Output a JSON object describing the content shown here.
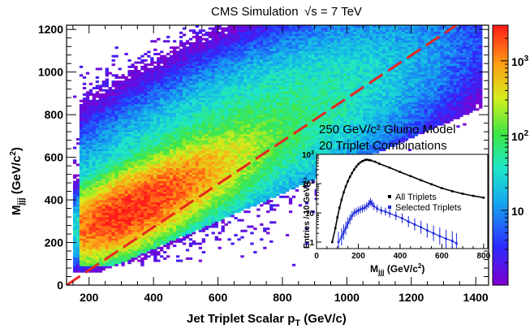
{
  "chart_data": {
    "type": "heatmap",
    "title": "CMS Simulation",
    "energy_label": "√s = 7 TeV",
    "xlabel": {
      "main": "Jet Triplet Scalar p",
      "sub": "T",
      "unit": " (GeV/c)"
    },
    "ylabel": {
      "main": "M",
      "sub": "jjj",
      "unit": " (GeV/c",
      "sup": "2",
      "close": ")"
    },
    "xlim": [
      130,
      1440
    ],
    "ylim": [
      0,
      1220
    ],
    "xticks": [
      200,
      400,
      600,
      800,
      1000,
      1200,
      1400
    ],
    "yticks": [
      0,
      200,
      400,
      600,
      800,
      1000,
      1200
    ],
    "colorbar": {
      "log": true,
      "range": [
        1,
        3000
      ],
      "ticks": [
        {
          "value": 10,
          "label": "10",
          "exp": ""
        },
        {
          "value": 100,
          "label": "10",
          "exp": "2"
        },
        {
          "value": 1000,
          "label": "10",
          "exp": "3"
        }
      ]
    },
    "density_model": {
      "main_lobe": {
        "center_x": 300,
        "center_y": 330,
        "amplitude": 2500,
        "along_sigma": 220,
        "across_sigma": 65,
        "slope": 0.85
      },
      "tail": {
        "amplitude": 80
      },
      "min_count": 1,
      "note_lower_edge": "no entries below about M = 0.65 * pT - 90"
    },
    "diagonal_cut": {
      "points": [
        [
          130,
          0
        ],
        [
          1340,
          1220
        ]
      ],
      "color": "#e8261f"
    },
    "model_text": [
      "250 GeV/c² Gluino Model",
      "20 Triplet Combinations"
    ],
    "inset": {
      "type": "line",
      "xlabel": {
        "main": "M",
        "sub": "jjj",
        "unit": " (GeV/c",
        "sup": "2",
        "close": ")"
      },
      "ylabel": "Entries / 10 GeV/c²",
      "xlim": [
        0,
        820
      ],
      "ylim_log": [
        0.6,
        1000
      ],
      "xticks": [
        0,
        200,
        400,
        600,
        800
      ],
      "yticks": [
        {
          "value": 1,
          "label": "1",
          "exp": ""
        },
        {
          "value": 10,
          "label": "10",
          "exp": ""
        },
        {
          "value": 100,
          "label": "10",
          "exp": "2"
        },
        {
          "value": 1000,
          "label": "10",
          "exp": "3"
        }
      ],
      "series": [
        {
          "name": "All Triplets",
          "color": "#000000",
          "x": [
            75,
            90,
            100,
            110,
            120,
            130,
            140,
            150,
            160,
            170,
            180,
            190,
            200,
            210,
            220,
            230,
            240,
            250,
            260,
            280,
            300,
            350,
            400,
            450,
            500,
            550,
            600,
            650,
            700,
            750,
            800
          ],
          "y": [
            1,
            3,
            7,
            15,
            28,
            50,
            80,
            120,
            170,
            230,
            300,
            380,
            460,
            530,
            590,
            630,
            660,
            640,
            620,
            560,
            480,
            350,
            250,
            180,
            130,
            95,
            70,
            55,
            45,
            38,
            33
          ]
        },
        {
          "name": "Selected Triplets",
          "color": "#1a28d9",
          "x": [
            105,
            120,
            130,
            140,
            150,
            160,
            170,
            180,
            190,
            200,
            210,
            220,
            230,
            240,
            250,
            258,
            265,
            275,
            290,
            310,
            330,
            350,
            380,
            410,
            440,
            470,
            500,
            530,
            560,
            590,
            620,
            650,
            670
          ],
          "y": [
            1,
            1.5,
            2.2,
            3,
            4.5,
            6,
            8,
            10,
            11,
            12,
            13,
            14,
            15,
            17,
            20,
            24,
            21,
            17,
            14,
            12,
            11,
            9.5,
            8,
            6.5,
            5,
            4,
            3.2,
            2.5,
            2,
            1.6,
            1.3,
            1.1,
            0.9
          ]
        }
      ]
    }
  }
}
